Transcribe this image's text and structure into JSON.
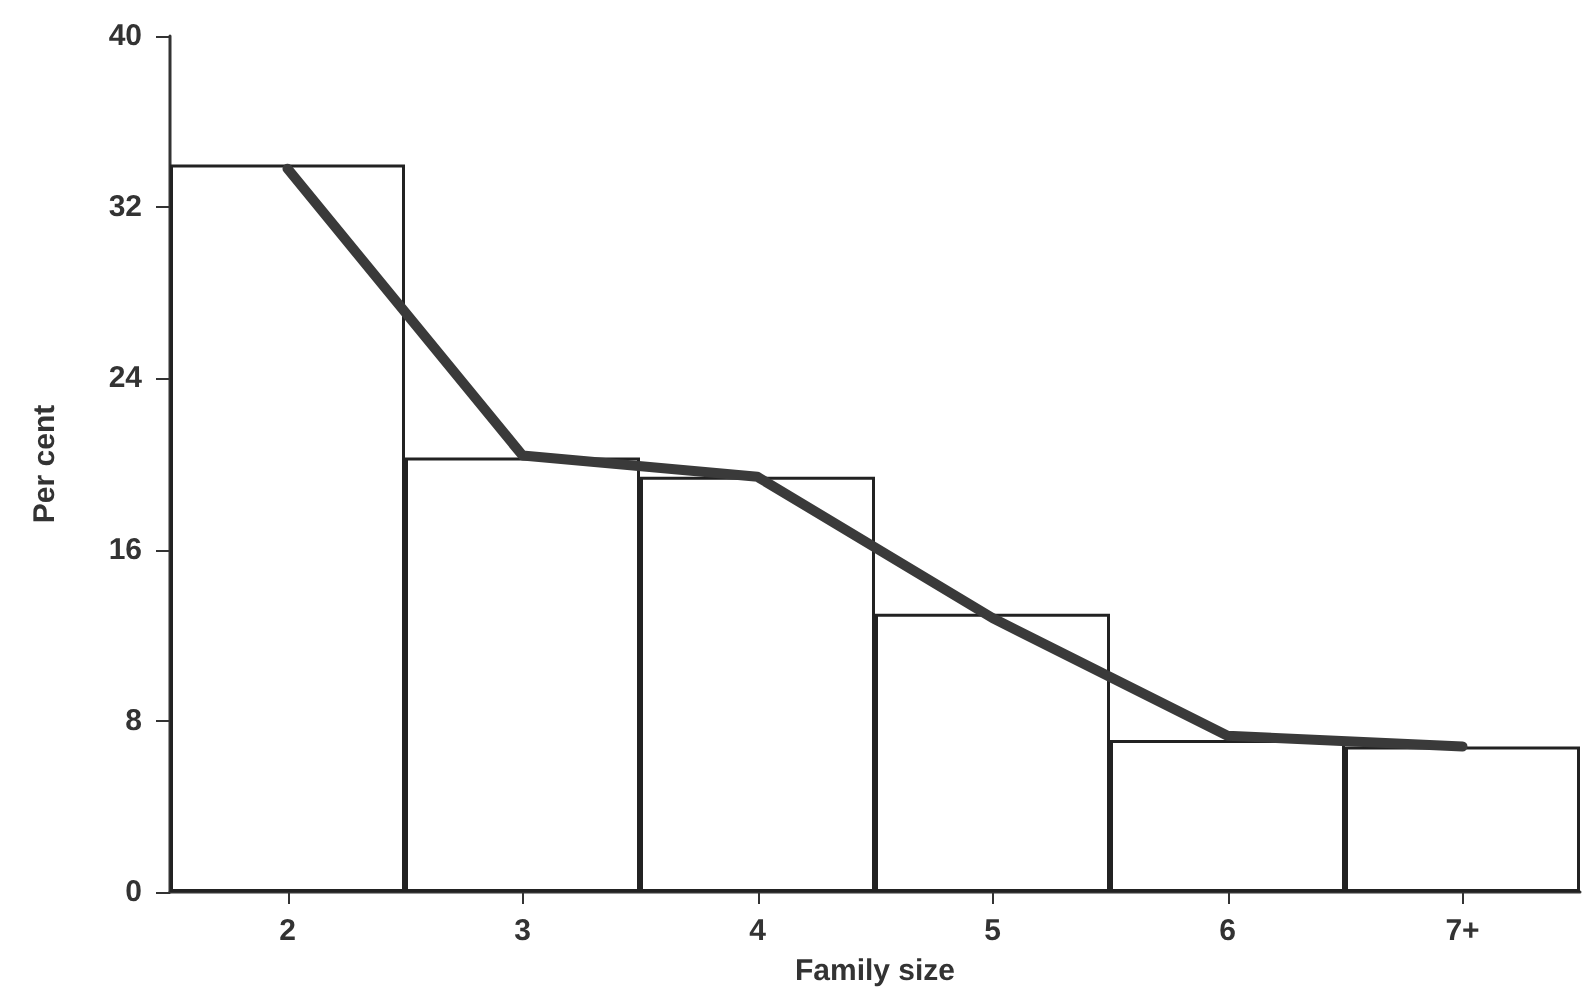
{
  "chart_data": {
    "type": "bar",
    "xlabel": "Family size",
    "ylabel": "Per cent",
    "categories": [
      "2",
      "3",
      "4",
      "5",
      "6",
      "7+"
    ],
    "series": [
      {
        "color": "#ffffff",
        "values": [
          34.0,
          20.3,
          19.4,
          13.0,
          7.1,
          6.8
        ]
      },
      {
        "type": "line",
        "color": "#3a3a3a",
        "values": [
          33.8,
          20.4,
          19.4,
          12.8,
          7.3,
          6.8
        ]
      }
    ],
    "ylim": [
      0,
      40
    ],
    "yticks": [
      0,
      8,
      16,
      24,
      32,
      40
    ],
    "grid": false,
    "marker": "none"
  }
}
